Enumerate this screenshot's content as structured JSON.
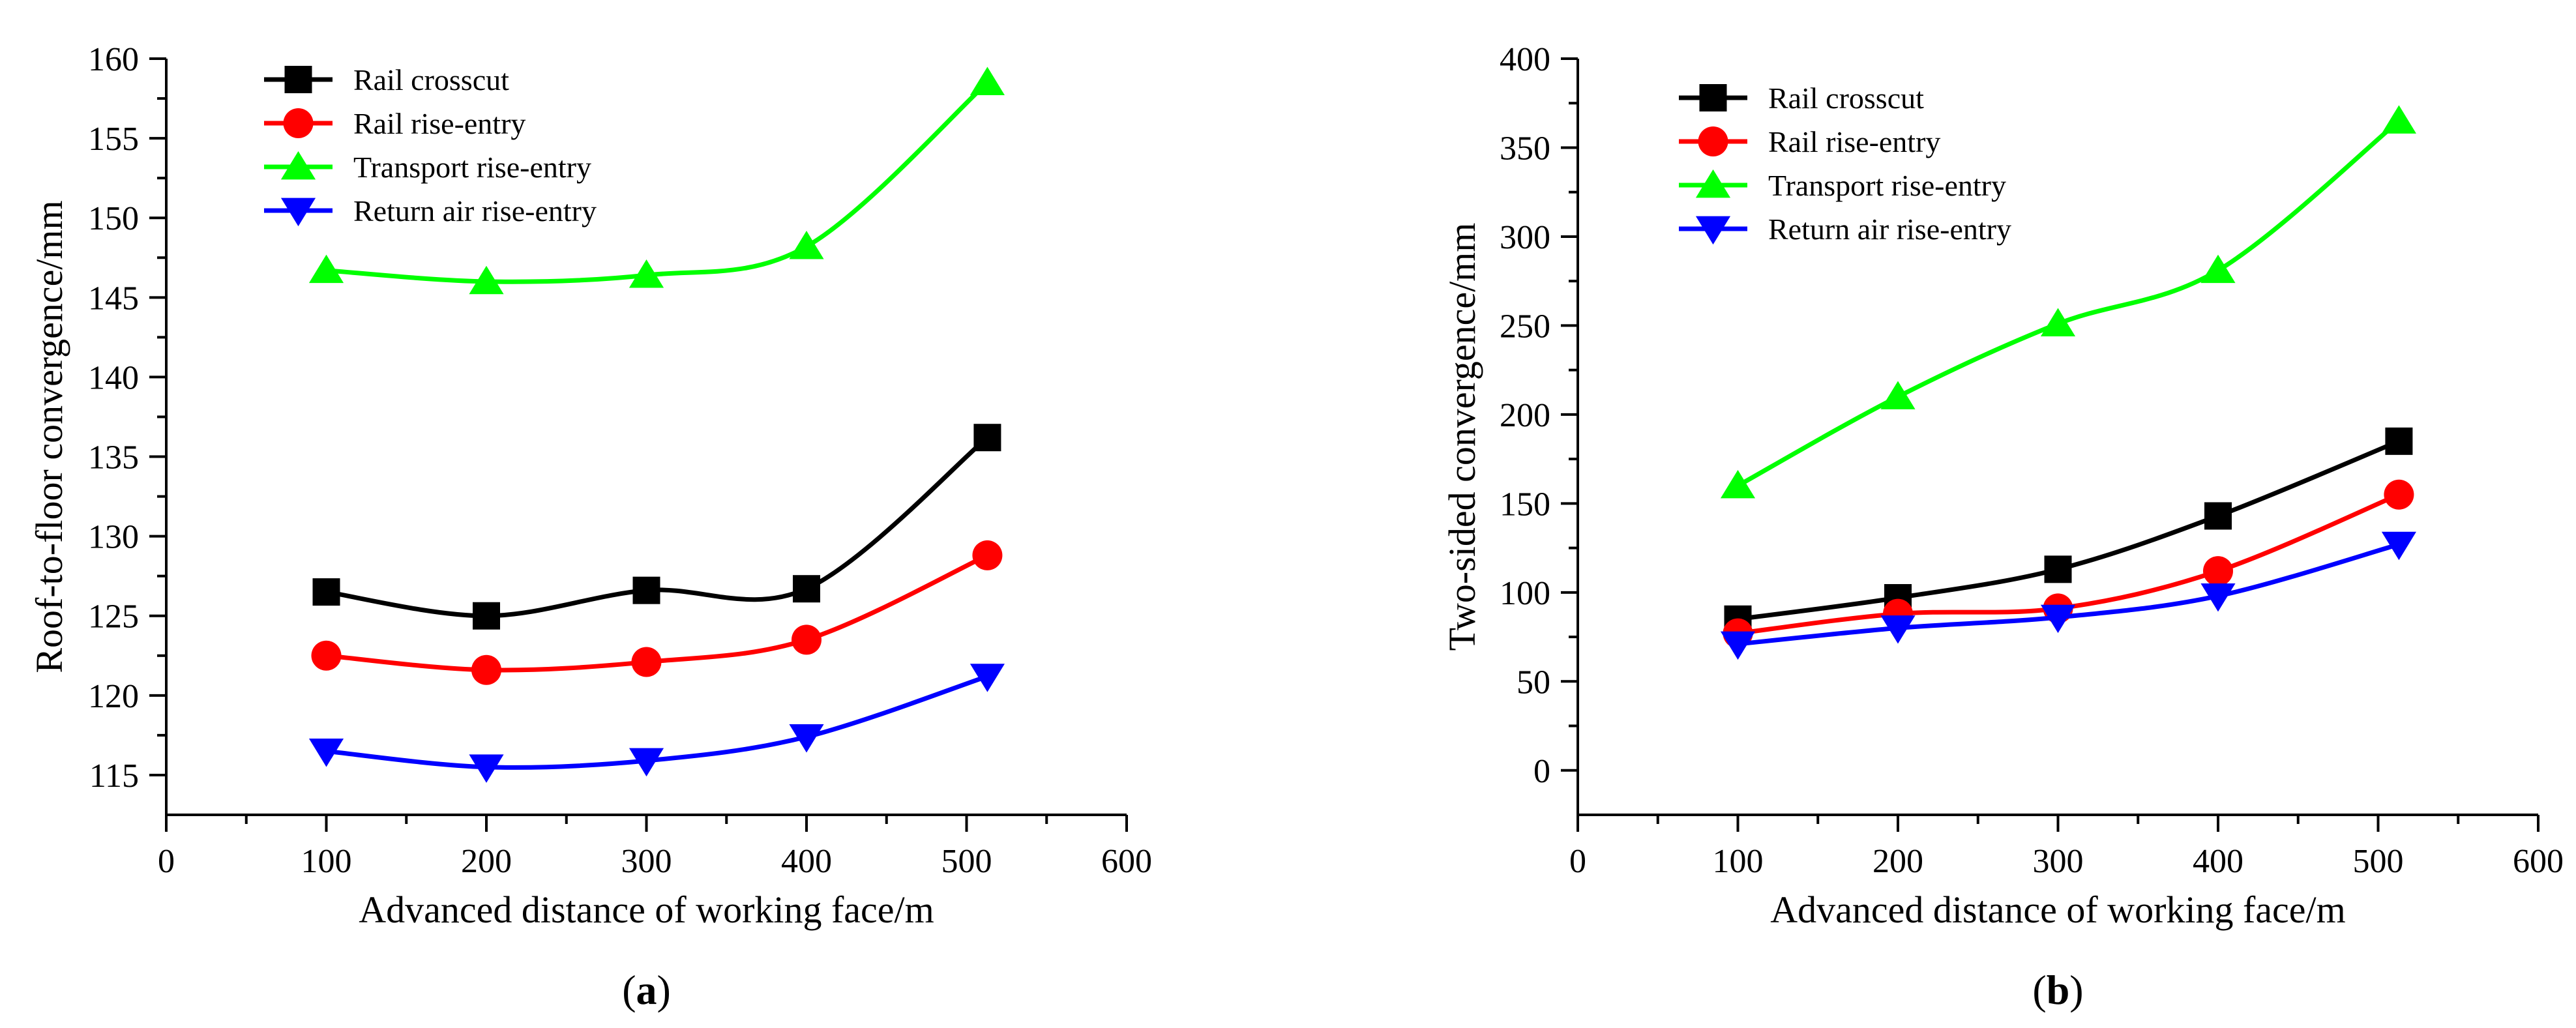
{
  "chart_data": [
    {
      "type": "line",
      "panel_label": {
        "open": "(",
        "letter": "a",
        "close": ")"
      },
      "xlabel": "Advanced distance of working face/m",
      "ylabel": "Roof-to-floor convergence/mm",
      "xlim": [
        0,
        600
      ],
      "ylim": [
        112.5,
        160
      ],
      "xticks": [
        0,
        100,
        200,
        300,
        400,
        500,
        600
      ],
      "yticks": [
        115,
        120,
        125,
        130,
        135,
        140,
        145,
        150,
        155,
        160
      ],
      "legend_position": "top-left",
      "grid": false,
      "series": [
        {
          "name": "Rail crosscut",
          "marker": "square",
          "color": "#000000",
          "x": [
            100,
            200,
            300,
            400,
            513
          ],
          "values": [
            126.5,
            125.0,
            126.6,
            126.7,
            136.2
          ]
        },
        {
          "name": "Rail rise-entry",
          "marker": "circle",
          "color": "#ff0000",
          "x": [
            100,
            200,
            300,
            400,
            513
          ],
          "values": [
            122.5,
            121.6,
            122.1,
            123.5,
            128.8
          ]
        },
        {
          "name": "Transport rise-entry",
          "marker": "triangle-up",
          "color": "#00ff00",
          "x": [
            100,
            200,
            300,
            400,
            513
          ],
          "values": [
            146.7,
            146.0,
            146.4,
            148.2,
            158.5
          ]
        },
        {
          "name": "Return air rise-entry",
          "marker": "triangle-down",
          "color": "#0000ff",
          "x": [
            100,
            200,
            300,
            400,
            513
          ],
          "values": [
            116.5,
            115.5,
            115.9,
            117.4,
            121.2
          ]
        }
      ]
    },
    {
      "type": "line",
      "panel_label": {
        "open": "(",
        "letter": "b",
        "close": ")"
      },
      "xlabel": "Advanced distance of working face/m",
      "ylabel": "Two-sided convergence/mm",
      "xlim": [
        0,
        600
      ],
      "ylim": [
        -25,
        400
      ],
      "xticks": [
        0,
        100,
        200,
        300,
        400,
        500,
        600
      ],
      "yticks": [
        0,
        50,
        100,
        150,
        200,
        250,
        300,
        350,
        400
      ],
      "legend_position": "top-left",
      "grid": false,
      "series": [
        {
          "name": "Rail crosscut",
          "marker": "square",
          "color": "#000000",
          "x": [
            100,
            200,
            300,
            400,
            513
          ],
          "values": [
            85,
            97,
            113,
            143,
            185
          ]
        },
        {
          "name": "Rail rise-entry",
          "marker": "circle",
          "color": "#ff0000",
          "x": [
            100,
            200,
            300,
            400,
            513
          ],
          "values": [
            77,
            88,
            91,
            112,
            155
          ]
        },
        {
          "name": "Transport rise-entry",
          "marker": "triangle-up",
          "color": "#00ff00",
          "x": [
            100,
            200,
            300,
            400,
            513
          ],
          "values": [
            160,
            210,
            251,
            281,
            365
          ]
        },
        {
          "name": "Return air rise-entry",
          "marker": "triangle-down",
          "color": "#0000ff",
          "x": [
            100,
            200,
            300,
            400,
            513
          ],
          "values": [
            71,
            80,
            86,
            98,
            127
          ]
        }
      ]
    }
  ]
}
